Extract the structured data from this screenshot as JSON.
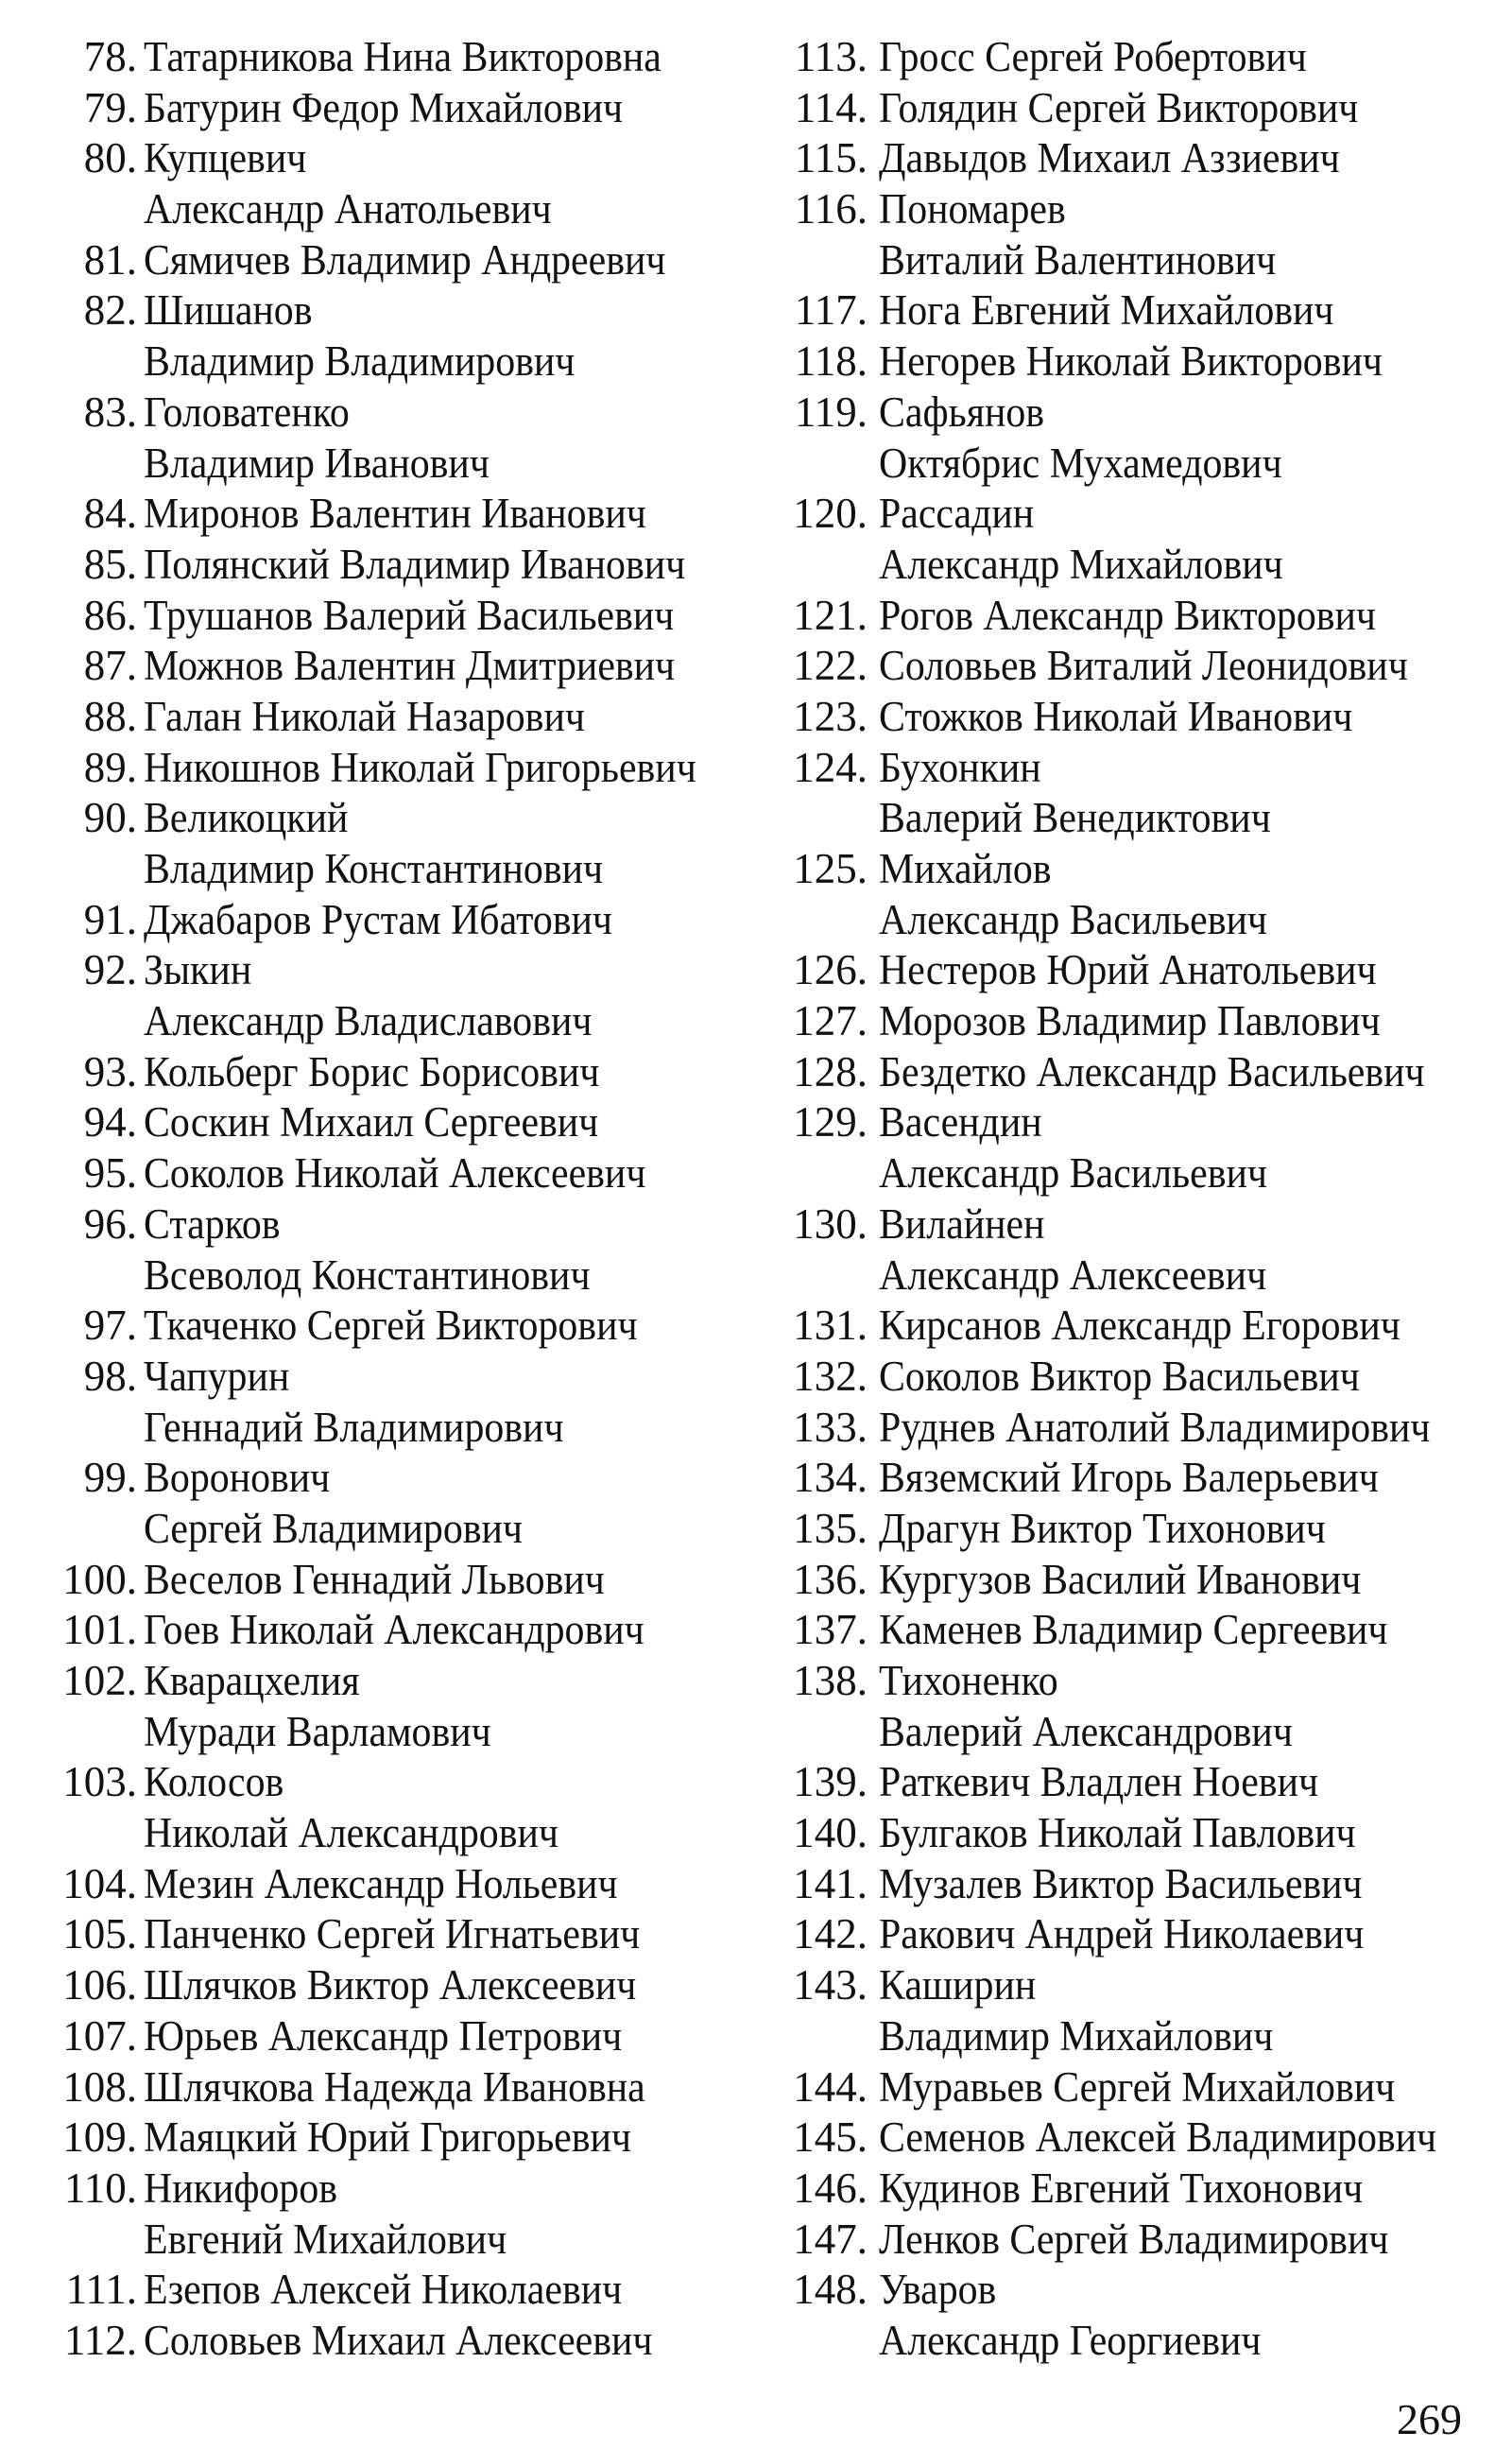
{
  "page_number": "269",
  "columns": [
    {
      "entries": [
        {
          "num": "78.",
          "lines": [
            "Татарникова Нина Викторовна"
          ]
        },
        {
          "num": "79.",
          "lines": [
            "Батурин Федор Михайлович"
          ]
        },
        {
          "num": "80.",
          "lines": [
            "Купцевич",
            "Александр Анатольевич"
          ]
        },
        {
          "num": "81.",
          "lines": [
            "Сямичев Владимир Андреевич"
          ]
        },
        {
          "num": "82.",
          "lines": [
            "Шишанов",
            "Владимир Владимирович"
          ]
        },
        {
          "num": "83.",
          "lines": [
            "Головатенко",
            "Владимир Иванович"
          ]
        },
        {
          "num": "84.",
          "lines": [
            "Миронов Валентин Иванович"
          ]
        },
        {
          "num": "85.",
          "lines": [
            "Полянский Владимир Иванович"
          ]
        },
        {
          "num": "86.",
          "lines": [
            "Трушанов Валерий Васильевич"
          ]
        },
        {
          "num": "87.",
          "lines": [
            "Можнов Валентин Дмитриевич"
          ]
        },
        {
          "num": "88.",
          "lines": [
            "Галан Николай Назарович"
          ]
        },
        {
          "num": "89.",
          "lines": [
            "Никошнов Николай Григорьевич"
          ]
        },
        {
          "num": "90.",
          "lines": [
            "Великоцкий",
            "Владимир Константинович"
          ]
        },
        {
          "num": "91.",
          "lines": [
            "Джабаров Рустам Ибатович"
          ]
        },
        {
          "num": "92.",
          "lines": [
            "Зыкин",
            "Александр Владиславович"
          ]
        },
        {
          "num": "93.",
          "lines": [
            "Кольберг Борис Борисович"
          ]
        },
        {
          "num": "94.",
          "lines": [
            "Соскин Михаил Сергеевич"
          ]
        },
        {
          "num": "95.",
          "lines": [
            "Соколов Николай Алексеевич"
          ]
        },
        {
          "num": "96.",
          "lines": [
            "Старков",
            "Всеволод Константинович"
          ]
        },
        {
          "num": "97.",
          "lines": [
            "Ткаченко Сергей Викторович"
          ]
        },
        {
          "num": "98.",
          "lines": [
            "Чапурин",
            "Геннадий Владимирович"
          ]
        },
        {
          "num": "99.",
          "lines": [
            "Воронович",
            "Сергей Владимирович"
          ]
        },
        {
          "num": "100.",
          "lines": [
            "Веселов Геннадий Львович"
          ]
        },
        {
          "num": "101.",
          "lines": [
            "Гоев Николай Александрович"
          ]
        },
        {
          "num": "102.",
          "lines": [
            "Кварацхелия",
            "Муради Варламович"
          ]
        },
        {
          "num": "103.",
          "lines": [
            "Колосов",
            "Николай Александрович"
          ]
        },
        {
          "num": "104.",
          "lines": [
            "Мезин Александр Нольевич"
          ]
        },
        {
          "num": "105.",
          "lines": [
            "Панченко Сергей Игнатьевич"
          ]
        },
        {
          "num": "106.",
          "lines": [
            "Шлячков Виктор Алексеевич"
          ]
        },
        {
          "num": "107.",
          "lines": [
            "Юрьев Александр Петрович"
          ]
        },
        {
          "num": "108.",
          "lines": [
            "Шлячкова Надежда Ивановна"
          ]
        },
        {
          "num": "109.",
          "lines": [
            "Маяцкий Юрий Григорьевич"
          ]
        },
        {
          "num": "110.",
          "lines": [
            "Никифоров",
            "Евгений Михайлович"
          ]
        },
        {
          "num": "111.",
          "lines": [
            "Езепов Алексей Николаевич"
          ]
        },
        {
          "num": "112.",
          "lines": [
            "Соловьев Михаил Алексеевич"
          ]
        }
      ]
    },
    {
      "entries": [
        {
          "num": "113.",
          "lines": [
            "Гросс Сергей Робертович"
          ]
        },
        {
          "num": "114.",
          "lines": [
            "Голядин Сергей Викторович"
          ]
        },
        {
          "num": "115.",
          "lines": [
            "Давыдов Михаил Аззиевич"
          ]
        },
        {
          "num": "116.",
          "lines": [
            "Пономарев",
            "Виталий Валентинович"
          ]
        },
        {
          "num": "117.",
          "lines": [
            "Нога Евгений Михайлович"
          ]
        },
        {
          "num": "118.",
          "lines": [
            "Негорев Николай Викторович"
          ]
        },
        {
          "num": "119.",
          "lines": [
            "Сафьянов",
            "Октябрис Мухамедович"
          ]
        },
        {
          "num": "120.",
          "lines": [
            "Рассадин",
            "Александр Михайлович"
          ]
        },
        {
          "num": "121.",
          "lines": [
            "Рогов Александр Викторович"
          ]
        },
        {
          "num": "122.",
          "lines": [
            "Соловьев Виталий Леонидович"
          ]
        },
        {
          "num": "123.",
          "lines": [
            "Стожков Николай Иванович"
          ]
        },
        {
          "num": "124.",
          "lines": [
            "Бухонкин",
            "Валерий Венедиктович"
          ]
        },
        {
          "num": "125.",
          "lines": [
            "Михайлов",
            "Александр Васильевич"
          ]
        },
        {
          "num": "126.",
          "lines": [
            "Нестеров Юрий Анатольевич"
          ]
        },
        {
          "num": "127.",
          "lines": [
            "Морозов Владимир Павлович"
          ]
        },
        {
          "num": "128.",
          "lines": [
            "Бездетко Александр Васильевич"
          ]
        },
        {
          "num": "129.",
          "lines": [
            "Васендин",
            "Александр Васильевич"
          ]
        },
        {
          "num": "130.",
          "lines": [
            "Вилайнен",
            "Александр Алексеевич"
          ]
        },
        {
          "num": "131.",
          "lines": [
            "Кирсанов Александр Егорович"
          ]
        },
        {
          "num": "132.",
          "lines": [
            "Соколов Виктор Васильевич"
          ]
        },
        {
          "num": "133.",
          "lines": [
            "Руднев Анатолий Владимирович"
          ]
        },
        {
          "num": "134.",
          "lines": [
            "Вяземский Игорь Валерьевич"
          ]
        },
        {
          "num": "135.",
          "lines": [
            "Драгун Виктор Тихонович"
          ]
        },
        {
          "num": "136.",
          "lines": [
            "Кургузов Василий Иванович"
          ]
        },
        {
          "num": "137.",
          "lines": [
            "Каменев Владимир Сергеевич"
          ]
        },
        {
          "num": "138.",
          "lines": [
            "Тихоненко",
            "Валерий Александрович"
          ]
        },
        {
          "num": "139.",
          "lines": [
            "Раткевич Владлен Ноевич"
          ]
        },
        {
          "num": "140.",
          "lines": [
            "Булгаков Николай Павлович"
          ]
        },
        {
          "num": "141.",
          "lines": [
            "Музалев Виктор Васильевич"
          ]
        },
        {
          "num": "142.",
          "lines": [
            "Ракович Андрей Николаевич"
          ]
        },
        {
          "num": "143.",
          "lines": [
            "Каширин",
            "Владимир Михайлович"
          ]
        },
        {
          "num": "144.",
          "lines": [
            "Муравьев Сергей Михайлович"
          ]
        },
        {
          "num": "145.",
          "lines": [
            "Семенов Алексей Владимирович"
          ]
        },
        {
          "num": "146.",
          "lines": [
            "Кудинов Евгений Тихонович"
          ]
        },
        {
          "num": "147.",
          "lines": [
            "Ленков Сергей Владимирович"
          ]
        },
        {
          "num": "148.",
          "lines": [
            "Уваров",
            "Александр Георгиевич"
          ]
        }
      ]
    }
  ]
}
